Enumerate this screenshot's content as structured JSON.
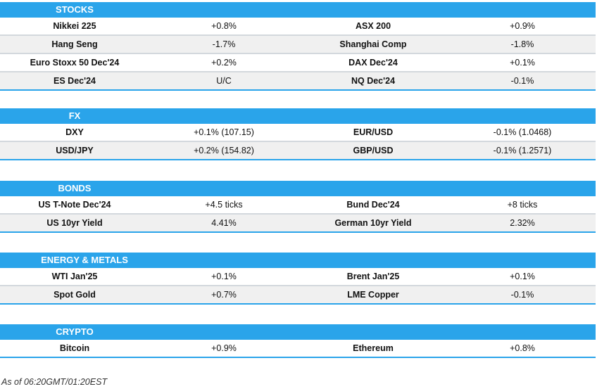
{
  "sections": [
    {
      "title": "STOCKS",
      "rows": [
        [
          "Nikkei 225",
          "+0.8%",
          "ASX 200",
          "+0.9%"
        ],
        [
          "Hang Seng",
          "-1.7%",
          "Shanghai Comp",
          "-1.8%"
        ],
        [
          "Euro Stoxx 50 Dec'24",
          "+0.2%",
          "DAX Dec'24",
          "+0.1%"
        ],
        [
          "ES Dec'24",
          "U/C",
          "NQ Dec'24",
          "-0.1%"
        ]
      ]
    },
    {
      "title": "FX",
      "rows": [
        [
          "DXY",
          "+0.1% (107.15)",
          "EUR/USD",
          "-0.1% (1.0468)"
        ],
        [
          "USD/JPY",
          "+0.2% (154.82)",
          "GBP/USD",
          "-0.1% (1.2571)"
        ]
      ]
    },
    {
      "title": "BONDS",
      "rows": [
        [
          "US T-Note Dec'24",
          "+4.5 ticks",
          "Bund Dec'24",
          "+8 ticks"
        ],
        [
          "US 10yr Yield",
          "4.41%",
          "German 10yr Yield",
          "2.32%"
        ]
      ]
    },
    {
      "title": "ENERGY & METALS",
      "rows": [
        [
          "WTI Jan'25",
          "+0.1%",
          "Brent Jan'25",
          "+0.1%"
        ],
        [
          "Spot Gold",
          "+0.7%",
          "LME Copper",
          "-0.1%"
        ]
      ]
    },
    {
      "title": "CRYPTO",
      "rows": [
        [
          "Bitcoin",
          "+0.9%",
          "Ethereum",
          "+0.8%"
        ]
      ]
    }
  ],
  "footnote": "As of 06:20GMT/01:20EST",
  "colors": {
    "header": "#2aa4ea",
    "alt_row": "#f0f0f0"
  }
}
